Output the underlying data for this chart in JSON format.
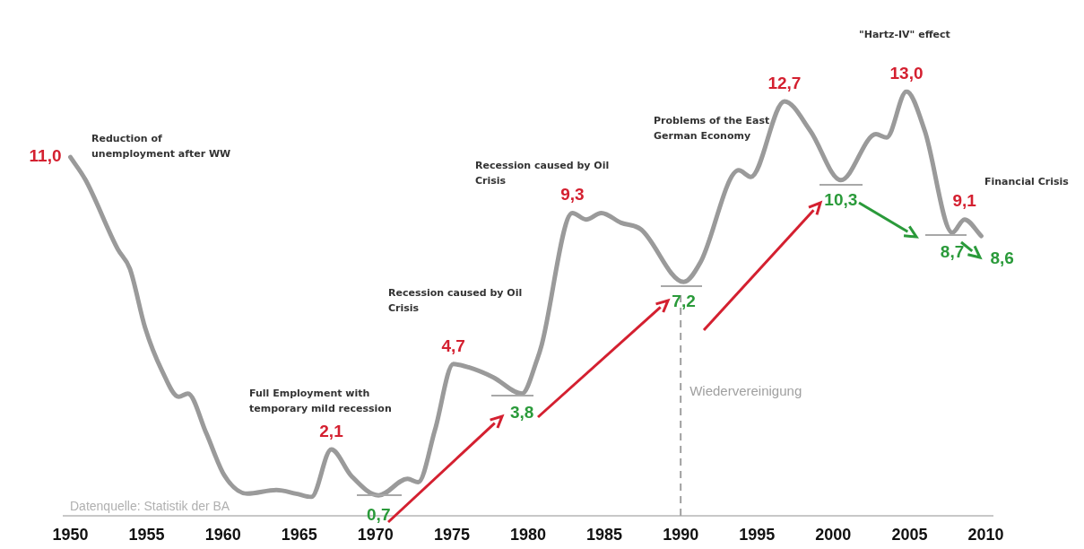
{
  "chart_data": {
    "type": "line",
    "x": [
      1950,
      1951,
      1953.1,
      1953.9,
      1954.9,
      1956,
      1957.1,
      1957.7,
      1958.9,
      1960.1,
      1961.6,
      1963.5,
      1964.8,
      1965.8,
      1967.1,
      1968.4,
      1970.2,
      1972.1,
      1972.8,
      1973.9,
      1975.1,
      1976.1,
      1977.7,
      1979.6,
      1980.6,
      1980.9,
      1982.9,
      1983.8,
      1984.8,
      1986.1,
      1987.4,
      1990.2,
      1991.3,
      1993.8,
      1994.6,
      1996.8,
      1998.5,
      2000.5,
      2002.8,
      2003.5,
      2004.8,
      2006,
      2007.8,
      2008.6,
      2009.7
    ],
    "series": [
      {
        "color": "#9a9a9a",
        "values": [
          11.0,
          10.3,
          8.2,
          7.6,
          5.8,
          4.5,
          3.7,
          3.8,
          2.6,
          1.3,
          0.75,
          0.86,
          0.75,
          0.65,
          2.1,
          1.3,
          0.7,
          1.2,
          1.1,
          2.7,
          4.7,
          4.6,
          4.3,
          3.8,
          4.85,
          5.3,
          9.3,
          9.1,
          9.3,
          9.0,
          8.8,
          7.2,
          7.8,
          10.6,
          10.4,
          12.7,
          11.8,
          10.3,
          11.7,
          11.6,
          13.0,
          11.8,
          8.7,
          9.1,
          8.6
        ],
        "value_labels": [
          "11,0",
          null,
          null,
          null,
          null,
          null,
          null,
          null,
          null,
          null,
          null,
          null,
          null,
          null,
          "2,1",
          null,
          "0,7",
          null,
          null,
          null,
          "4,7",
          null,
          null,
          "3,8",
          null,
          null,
          "9,3",
          null,
          null,
          null,
          null,
          "7,2",
          null,
          null,
          null,
          "12,7",
          null,
          "10,3",
          null,
          null,
          "13,0",
          null,
          "8,7",
          "9,1",
          "8,6"
        ]
      }
    ],
    "xlim": [
      1949.5,
      2010.5
    ],
    "xticks": [
      1950,
      1955,
      1960,
      1965,
      1970,
      1975,
      1980,
      1985,
      1990,
      1995,
      2000,
      2005,
      2010
    ],
    "tick_labels": "x",
    "grid": false,
    "legend": false,
    "marker": "none",
    "line_style": "solid",
    "ref_lines": [
      {
        "axis": "x",
        "value": 1990,
        "label": "Wiedervereinigung",
        "color": "#a0a0a0",
        "line_style": "dashed"
      }
    ],
    "annotations": [
      "Reduction of\nunemployment after WW",
      "Full Employment with\ntemporary mild recession",
      "Recession caused by Oil\nCrisis",
      "Recession caused by Oil\nCrisis",
      "Problems of the East\nGerman Economy",
      "\"Hartz-IV\" effect",
      "Financial Crisis",
      "Datenquelle: Statistik der BA"
    ]
  }
}
